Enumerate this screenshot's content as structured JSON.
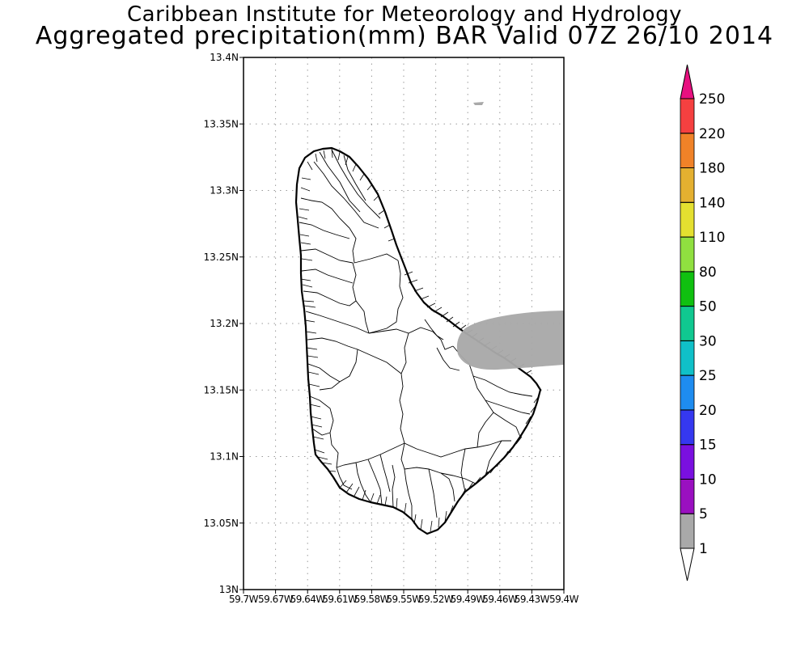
{
  "title": {
    "line1": "Caribbean Institute for Meteorology and Hydrology",
    "line2": "Aggregated precipitation(mm) BAR Valid 07Z 26/10 2014"
  },
  "map": {
    "lat_range": [
      13.0,
      13.4
    ],
    "lon_range": [
      -59.7,
      -59.4
    ],
    "y_ticks": [
      "13N",
      "13.05N",
      "13.1N",
      "13.15N",
      "13.2N",
      "13.25N",
      "13.3N",
      "13.35N",
      "13.4N"
    ],
    "x_ticks": [
      "59.7W",
      "59.67W",
      "59.64W",
      "59.61W",
      "59.58W",
      "59.55W",
      "59.52W",
      "59.49W",
      "59.46W",
      "59.43W",
      "59.4W"
    ],
    "grid": "dotted",
    "region": "Barbados",
    "precip_area": {
      "category": "1-5 mm",
      "color": "#a9a9a9"
    }
  },
  "colorbar": {
    "labels": [
      "1",
      "5",
      "10",
      "15",
      "20",
      "25",
      "30",
      "50",
      "80",
      "110",
      "140",
      "180",
      "220",
      "250"
    ],
    "colors": [
      "#ffffff",
      "#a9a9a9",
      "#9a10c0",
      "#7a10e0",
      "#3538f0",
      "#1e8cf0",
      "#10c0c8",
      "#10c890",
      "#10c010",
      "#90e040",
      "#e4e030",
      "#e4b030",
      "#f08228",
      "#f54040",
      "#e81080"
    ]
  }
}
